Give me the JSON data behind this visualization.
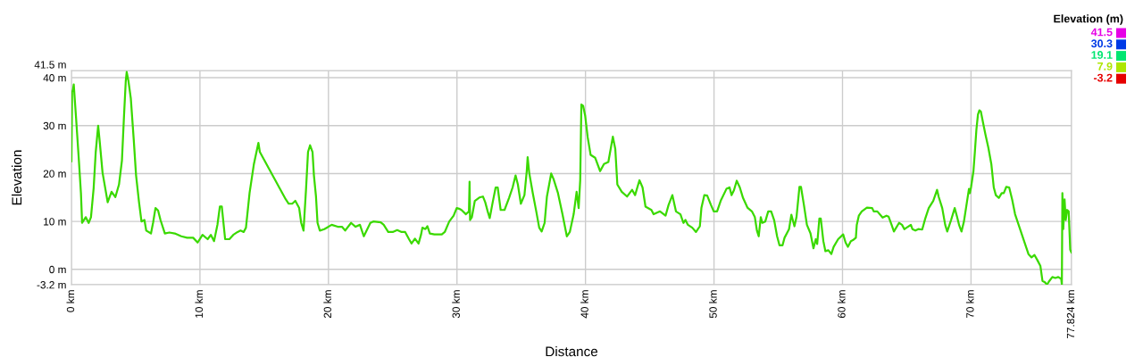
{
  "chart_data": {
    "type": "line",
    "xlabel": "Distance",
    "ylabel": "Elevation",
    "clabel": "Elevation (m)",
    "cticks": [
      41.5,
      30.3,
      19.1,
      7.9,
      -3.2
    ],
    "xlim": [
      0,
      77.824
    ],
    "ylim": [
      -3.2,
      41.5
    ],
    "xticks": [
      {
        "value": 0,
        "label": "0 km"
      },
      {
        "value": 10,
        "label": "10 km"
      },
      {
        "value": 20,
        "label": "20 km"
      },
      {
        "value": 30,
        "label": "30 km"
      },
      {
        "value": 40,
        "label": "40 km"
      },
      {
        "value": 50,
        "label": "50 km"
      },
      {
        "value": 60,
        "label": "60 km"
      },
      {
        "value": 70,
        "label": "70 km"
      },
      {
        "value": 77.824,
        "label": "77.824 km"
      }
    ],
    "yticks": [
      {
        "value": -3.2,
        "label": "-3.2 m"
      },
      {
        "value": 0,
        "label": "0 m"
      },
      {
        "value": 10,
        "label": "10 m"
      },
      {
        "value": 20,
        "label": "20 m"
      },
      {
        "value": 30,
        "label": "30 m"
      },
      {
        "value": 40,
        "label": "40 m"
      },
      {
        "value": 41.5,
        "label": "41.5 m"
      }
    ],
    "grid": true,
    "series": [
      {
        "color": "#3ad900",
        "x": [
          0,
          0.05,
          0.12,
          0.18,
          0.35,
          0.58,
          0.74,
          0.83,
          1.11,
          1.34,
          1.52,
          1.73,
          1.89,
          2.08,
          2.19,
          2.42,
          2.82,
          3.12,
          3.42,
          3.7,
          3.93,
          4.09,
          4.23,
          4.3,
          4.43,
          4.62,
          4.85,
          5.03,
          5.26,
          5.45,
          5.68,
          5.82,
          6.19,
          6.35,
          6.54,
          6.74,
          6.93,
          7.27,
          7.62,
          8.04,
          8.55,
          9.0,
          9.47,
          9.82,
          10.2,
          10.6,
          10.85,
          11.1,
          11.36,
          11.55,
          11.7,
          11.96,
          12.29,
          12.59,
          12.93,
          13.16,
          13.4,
          13.58,
          13.86,
          14.2,
          14.55,
          14.66,
          16.68,
          16.91,
          17.18,
          17.42,
          17.72,
          17.88,
          18.06,
          18.25,
          18.41,
          18.57,
          18.76,
          18.87,
          19.03,
          19.15,
          19.33,
          19.68,
          20.25,
          20.72,
          21.05,
          21.3,
          21.76,
          22.11,
          22.45,
          22.75,
          23.26,
          23.49,
          24.07,
          24.3,
          24.65,
          25.0,
          25.35,
          25.69,
          25.97,
          26.27,
          26.46,
          26.73,
          27.01,
          27.2,
          27.31,
          27.54,
          27.7,
          27.89,
          28.24,
          28.82,
          29.05,
          29.4,
          29.74,
          29.98,
          30.22,
          30.35,
          30.7,
          30.93,
          30.98,
          31.02,
          31.16,
          31.39,
          31.74,
          32.02,
          32.2,
          32.39,
          32.55,
          32.78,
          33.01,
          33.17,
          33.4,
          33.7,
          34.05,
          34.33,
          34.56,
          34.74,
          34.97,
          35.25,
          35.43,
          35.5,
          35.62,
          35.9,
          36.17,
          36.4,
          36.59,
          36.82,
          37.0,
          37.33,
          37.51,
          37.86,
          38.21,
          38.55,
          38.78,
          39.08,
          39.31,
          39.47,
          39.59,
          39.68,
          39.82,
          39.98,
          40.17,
          40.4,
          40.75,
          41.14,
          41.44,
          41.78,
          42.13,
          42.32,
          42.48,
          42.82,
          43.24,
          43.63,
          43.86,
          44.2,
          44.44,
          44.67,
          45.13,
          45.3,
          45.8,
          46.23,
          46.46,
          46.76,
          47.04,
          47.39,
          47.62,
          47.78,
          47.97,
          48.31,
          48.6,
          48.9,
          49.02,
          49.25,
          49.47,
          49.77,
          49.98,
          50.24,
          50.52,
          50.97,
          51.21,
          51.37,
          51.55,
          51.77,
          52.01,
          52.26,
          52.6,
          52.95,
          53.18,
          53.34,
          53.48,
          53.64,
          53.76,
          53.99,
          54.22,
          54.45,
          54.68,
          54.91,
          55.1,
          55.33,
          55.49,
          55.84,
          56.02,
          56.26,
          56.42,
          56.65,
          56.77,
          57.0,
          57.23,
          57.51,
          57.74,
          57.92,
          58.03,
          58.2,
          58.31,
          58.51,
          58.67,
          58.9,
          59.13,
          59.31,
          59.66,
          60.05,
          60.24,
          60.42,
          60.65,
          60.81,
          61.04,
          61.11,
          61.27,
          61.5,
          61.9,
          62.31,
          62.43,
          62.71,
          63.12,
          63.42,
          63.59,
          63.82,
          64.0,
          64.4,
          64.63,
          64.81,
          64.98,
          65.32,
          65.44,
          65.67,
          65.9,
          66.2,
          66.44,
          66.71,
          67.06,
          67.36,
          67.48,
          67.76,
          67.99,
          68.15,
          68.45,
          68.73,
          68.92,
          69.08,
          69.26,
          69.45,
          69.68,
          69.84,
          69.91,
          70.0,
          70.19,
          70.3,
          70.42,
          70.54,
          70.65,
          70.77,
          70.93,
          71.12,
          71.35,
          71.58,
          71.77,
          71.93,
          72.16,
          72.39,
          72.55,
          72.74,
          72.97,
          73.2,
          73.43,
          73.78,
          74.13,
          74.47,
          74.71,
          74.94,
          75.17,
          75.4,
          75.56,
          75.75,
          75.91,
          76.1,
          76.33,
          76.56,
          76.79,
          77.02,
          77.07,
          77.11,
          77.18,
          77.28,
          77.37,
          77.48,
          77.6,
          77.72,
          77.82
        ],
        "values": [
          22.5,
          37,
          37.5,
          38.6,
          32,
          22.7,
          15.9,
          9.7,
          10.9,
          9.7,
          10.9,
          17,
          24.5,
          30,
          27,
          20.2,
          14,
          16.2,
          15.1,
          17.7,
          22.7,
          32,
          39.4,
          41.2,
          39.4,
          35.7,
          27,
          19.6,
          14,
          10,
          10.3,
          8.1,
          7.5,
          9.7,
          12.8,
          12.3,
          10.3,
          7.5,
          7.7,
          7.5,
          6.9,
          6.6,
          6.6,
          5.6,
          7.2,
          6.3,
          7.2,
          5.9,
          9.3,
          13.1,
          13.1,
          6.3,
          6.3,
          7.2,
          7.8,
          8.1,
          7.8,
          8.7,
          15.9,
          22,
          26.4,
          24.5,
          14.6,
          13.7,
          13.7,
          14.3,
          12.8,
          9.7,
          8.1,
          16.5,
          24.5,
          25.9,
          24.5,
          19.6,
          15.2,
          9.7,
          8.1,
          8.4,
          9.3,
          8.9,
          8.9,
          8.1,
          9.7,
          8.9,
          9.3,
          6.9,
          9.7,
          10.0,
          9.8,
          9.3,
          7.8,
          7.8,
          8.2,
          7.8,
          7.8,
          6.3,
          5.4,
          6.4,
          5.4,
          7.2,
          8.7,
          8.4,
          9.0,
          7.5,
          7.3,
          7.3,
          7.8,
          10.0,
          11.2,
          12.8,
          12.6,
          12.4,
          11.5,
          12.1,
          18.3,
          10.3,
          10.9,
          14.3,
          15.0,
          15.2,
          14.0,
          12.1,
          10.7,
          14.0,
          17.1,
          17.1,
          12.4,
          12.4,
          14.9,
          17.1,
          19.6,
          17.7,
          13.7,
          15.5,
          20.5,
          23.4,
          20.2,
          15.9,
          12.1,
          8.7,
          7.9,
          9.7,
          15.2,
          20.0,
          18.9,
          15.9,
          11.5,
          6.9,
          7.8,
          11.5,
          16.2,
          12.8,
          18.6,
          34.4,
          34.1,
          32.0,
          27.6,
          23.9,
          23.3,
          20.5,
          22.0,
          22.4,
          27.7,
          25.1,
          17.7,
          16.2,
          15.2,
          16.6,
          15.5,
          18.6,
          17.1,
          13.1,
          12.4,
          11.5,
          12.1,
          11.2,
          13.4,
          15.5,
          12.1,
          11.5,
          9.7,
          10.3,
          9.3,
          8.7,
          7.8,
          9.0,
          12.8,
          15.5,
          15.4,
          13.4,
          12.1,
          12.1,
          14.3,
          16.8,
          17.1,
          15.5,
          16.5,
          18.5,
          17.1,
          14.9,
          12.9,
          12.1,
          10.9,
          8.1,
          6.9,
          10.9,
          9.7,
          10.0,
          12.1,
          12.1,
          10.3,
          6.9,
          5.0,
          5.0,
          6.6,
          8.4,
          11.4,
          9.0,
          10.9,
          17.2,
          17.2,
          13.4,
          9.3,
          7.5,
          4.4,
          6.3,
          5.3,
          10.6,
          10.6,
          5.9,
          3.8,
          4.0,
          3.2,
          4.7,
          6.3,
          7.3,
          5.6,
          4.7,
          5.9,
          6.1,
          6.6,
          9.3,
          11.2,
          12.1,
          12.9,
          12.8,
          12.1,
          12.1,
          10.8,
          11.2,
          11.0,
          9.3,
          7.9,
          9.7,
          9.3,
          8.4,
          8.7,
          9.3,
          8.4,
          8.1,
          8.4,
          8.3,
          10.6,
          12.8,
          14.3,
          16.6,
          15.2,
          12.8,
          9.3,
          7.9,
          10.3,
          12.8,
          10.9,
          9.2,
          7.9,
          10.0,
          14.0,
          16.8,
          15.9,
          17.1,
          20.5,
          24.5,
          29.2,
          32.3,
          33.2,
          32.9,
          30.7,
          28.2,
          25.4,
          22.0,
          17.1,
          15.5,
          14.9,
          15.9,
          15.9,
          17.2,
          17.1,
          14.6,
          11.5,
          8.7,
          5.9,
          3.2,
          2.5,
          3.0,
          1.9,
          0.7,
          -2.4,
          -2.7,
          -3.2,
          -2.4,
          -1.6,
          -1.8,
          -1.6,
          -2.0,
          -3.2,
          15.9,
          8.4,
          14.6,
          10.3,
          12.4,
          12.1,
          4.1,
          3.5
        ]
      }
    ]
  }
}
